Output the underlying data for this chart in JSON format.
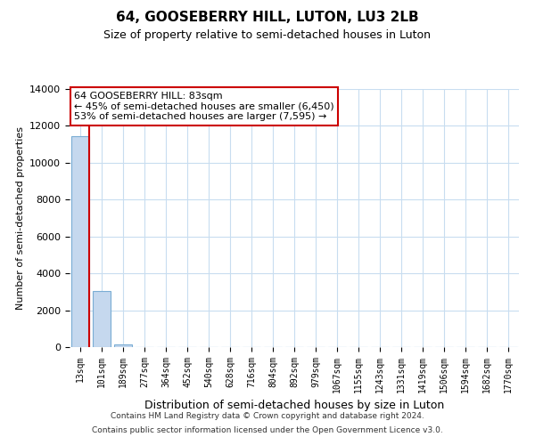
{
  "title": "64, GOOSEBERRY HILL, LUTON, LU3 2LB",
  "subtitle": "Size of property relative to semi-detached houses in Luton",
  "xlabel": "Distribution of semi-detached houses by size in Luton",
  "ylabel": "Number of semi-detached properties",
  "bar_labels": [
    "13sqm",
    "101sqm",
    "189sqm",
    "277sqm",
    "364sqm",
    "452sqm",
    "540sqm",
    "628sqm",
    "716sqm",
    "804sqm",
    "892sqm",
    "979sqm",
    "1067sqm",
    "1155sqm",
    "1243sqm",
    "1331sqm",
    "1419sqm",
    "1506sqm",
    "1594sqm",
    "1682sqm",
    "1770sqm"
  ],
  "bar_values": [
    11450,
    3030,
    130,
    0,
    0,
    0,
    0,
    0,
    0,
    0,
    0,
    0,
    0,
    0,
    0,
    0,
    0,
    0,
    0,
    0,
    0
  ],
  "bar_color": "#c5d8ee",
  "bar_edgecolor": "#7aadd4",
  "vline_color": "#cc0000",
  "vline_x": 0.42,
  "annotation_title": "64 GOOSEBERRY HILL: 83sqm",
  "annotation_line1": "← 45% of semi-detached houses are smaller (6,450)",
  "annotation_line2": "53% of semi-detached houses are larger (7,595) →",
  "annotation_box_facecolor": "#ffffff",
  "annotation_box_edgecolor": "#cc0000",
  "ylim": [
    0,
    14000
  ],
  "yticks": [
    0,
    2000,
    4000,
    6000,
    8000,
    10000,
    12000,
    14000
  ],
  "grid_color": "#c8ddf0",
  "background_color": "#ffffff",
  "footer1": "Contains HM Land Registry data © Crown copyright and database right 2024.",
  "footer2": "Contains public sector information licensed under the Open Government Licence v3.0."
}
